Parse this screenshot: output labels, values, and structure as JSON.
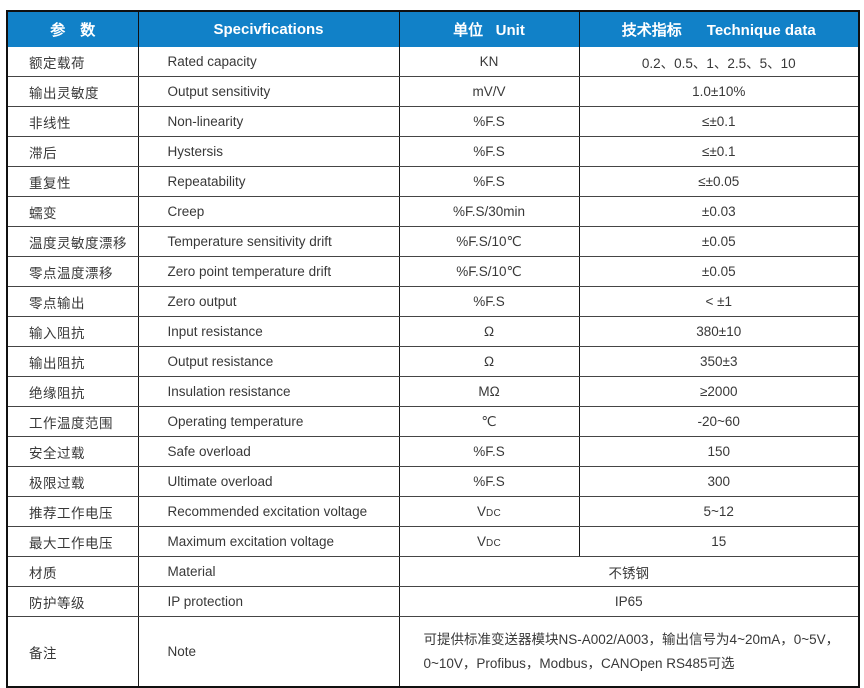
{
  "table": {
    "accent_color": "#1181c8",
    "border_color": "#101010",
    "header": {
      "param": "参　数",
      "spec": "Specivfications",
      "unit": "单位   Unit",
      "data": "技术指标      Technique data"
    },
    "rows": [
      {
        "param": "额定载荷",
        "spec": "Rated capacity",
        "unit": "KN",
        "value": "0.2、0.5、1、2.5、5、10"
      },
      {
        "param": "输出灵敏度",
        "spec": "Output sensitivity",
        "unit": "mV/V",
        "value": "1.0±10%"
      },
      {
        "param": "非线性",
        "spec": "Non-linearity",
        "unit": "%F.S",
        "value": "≤±0.1"
      },
      {
        "param": "滞后",
        "spec": "Hystersis",
        "unit": "%F.S",
        "value": "≤±0.1"
      },
      {
        "param": "重复性",
        "spec": "Repeatability",
        "unit": "%F.S",
        "value": "≤±0.05"
      },
      {
        "param": "蠕变",
        "spec": "Creep",
        "unit": "%F.S/30min",
        "value": "±0.03"
      },
      {
        "param": "温度灵敏度漂移",
        "spec": "Temperature sensitivity drift",
        "unit": "%F.S/10℃",
        "value": "±0.05"
      },
      {
        "param": "零点温度漂移",
        "spec": "Zero point temperature drift",
        "unit": "%F.S/10℃",
        "value": "±0.05"
      },
      {
        "param": "零点输出",
        "spec": "Zero output",
        "unit": "%F.S",
        "value": "< ±1"
      },
      {
        "param": "输入阻抗",
        "spec": "Input resistance",
        "unit": "Ω",
        "value": "380±10"
      },
      {
        "param": "输出阻抗",
        "spec": "Output resistance",
        "unit": "Ω",
        "value": "350±3"
      },
      {
        "param": "绝缘阻抗",
        "spec": "Insulation resistance",
        "unit": "MΩ",
        "value": "≥2000"
      },
      {
        "param": "工作温度范围",
        "spec": "Operating temperature",
        "unit": "℃",
        "value": "-20~60"
      },
      {
        "param": "安全过载",
        "spec": "Safe overload",
        "unit": "%F.S",
        "value": "150"
      },
      {
        "param": "极限过载",
        "spec": "Ultimate overload",
        "unit": "%F.S",
        "value": "300"
      },
      {
        "param": "推荐工作电压",
        "spec": "Recommended excitation voltage",
        "unit": "VDC",
        "value": "5~12"
      },
      {
        "param": "最大工作电压",
        "spec": "Maximum excitation voltage",
        "unit": "VDC",
        "value": "15"
      },
      {
        "param": "材质",
        "spec": "Material",
        "merged": "不锈钢"
      },
      {
        "param": "防护等级",
        "spec": "IP protection",
        "merged": "IP65"
      },
      {
        "param": "备注",
        "spec": "Note",
        "merged": "可提供标准变送器模块NS-A002/A003，输出信号为4~20mA，0~5V，0~10V，Profibus，Modbus，CANOpen  RS485可选",
        "merged_align": "left",
        "tall": true
      }
    ]
  }
}
